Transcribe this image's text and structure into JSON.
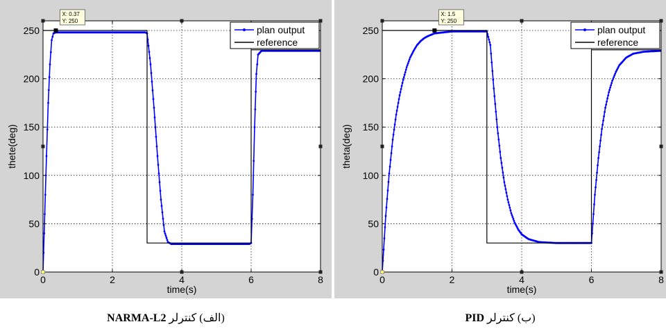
{
  "chart_data": [
    {
      "type": "line",
      "panel": "left",
      "xlabel": "time(s)",
      "ylabel": "thete(deg)",
      "xlim": [
        0,
        8
      ],
      "ylim": [
        0,
        260
      ],
      "xticks": [
        0,
        2,
        4,
        6,
        8
      ],
      "yticks": [
        0,
        50,
        100,
        150,
        200,
        250
      ],
      "grid": true,
      "legend": "top-right",
      "datatip": {
        "x_text": "X: 0.37",
        "y_text": "Y: 250",
        "x": 0.37,
        "y": 250
      },
      "series": [
        {
          "name": "plan output",
          "color": "#0000ff",
          "marker": "dot",
          "x": [
            0,
            0.05,
            0.1,
            0.15,
            0.2,
            0.25,
            0.3,
            0.37,
            1,
            2,
            2.95,
            3.0,
            3.1,
            3.2,
            3.3,
            3.4,
            3.5,
            3.6,
            3.7,
            4,
            5,
            5.95,
            6.0,
            6.05,
            6.1,
            6.15,
            6.2,
            6.3,
            7,
            8
          ],
          "values": [
            0,
            60,
            120,
            175,
            215,
            240,
            247,
            248,
            248,
            248,
            248,
            247,
            215,
            170,
            120,
            75,
            42,
            31,
            29,
            29,
            29,
            29,
            30,
            80,
            150,
            205,
            225,
            229,
            229,
            229
          ]
        },
        {
          "name": "reference",
          "color": "#000000",
          "marker": "none",
          "x": [
            0,
            3,
            3,
            6,
            6,
            8
          ],
          "values": [
            250,
            250,
            30,
            30,
            230,
            230
          ]
        }
      ]
    },
    {
      "type": "line",
      "panel": "right",
      "xlabel": "time(s)",
      "ylabel": "theta(deg)",
      "xlim": [
        0,
        8
      ],
      "ylim": [
        0,
        260
      ],
      "xticks": [
        0,
        2,
        4,
        6,
        8
      ],
      "yticks": [
        0,
        50,
        100,
        150,
        200,
        250
      ],
      "grid": true,
      "legend": "top-right",
      "datatip": {
        "x_text": "X: 1.5",
        "y_text": "Y: 250",
        "x": 1.5,
        "y": 250
      },
      "series": [
        {
          "name": "plan output",
          "color": "#0000ff",
          "marker": "dot",
          "x": [
            0,
            0.1,
            0.2,
            0.3,
            0.4,
            0.5,
            0.6,
            0.7,
            0.8,
            0.9,
            1.0,
            1.1,
            1.2,
            1.3,
            1.5,
            2,
            2.5,
            2.95,
            3.0,
            3.1,
            3.2,
            3.3,
            3.4,
            3.5,
            3.6,
            3.7,
            3.8,
            3.9,
            4.0,
            4.2,
            4.5,
            5,
            5.5,
            5.95,
            6.0,
            6.1,
            6.2,
            6.3,
            6.4,
            6.5,
            6.6,
            6.7,
            6.8,
            6.9,
            7.0,
            7.2,
            7.5,
            8
          ],
          "values": [
            0,
            58,
            102,
            137,
            163,
            183,
            199,
            212,
            222,
            229,
            235,
            239,
            242,
            244,
            247,
            249,
            249,
            249,
            249,
            235,
            190,
            150,
            118,
            93,
            75,
            61,
            51,
            44,
            39,
            34,
            31,
            30,
            30,
            30,
            30,
            80,
            118,
            148,
            170,
            186,
            198,
            207,
            214,
            218,
            222,
            226,
            228,
            229
          ]
        },
        {
          "name": "reference",
          "color": "#000000",
          "marker": "none",
          "x": [
            0,
            3,
            3,
            6,
            6,
            8
          ],
          "values": [
            250,
            250,
            30,
            30,
            230,
            230
          ]
        }
      ]
    }
  ],
  "captions": {
    "left": {
      "prefix": "(الف) کنترلر ",
      "bold": "NARMA-L2"
    },
    "right": {
      "prefix": "(ب) کنترلر ",
      "bold": "PID"
    }
  },
  "colors": {
    "figure_bg": "#d4d4d4",
    "axes_bg": "#ffffff",
    "datatip_bg": "#ffffe0"
  }
}
